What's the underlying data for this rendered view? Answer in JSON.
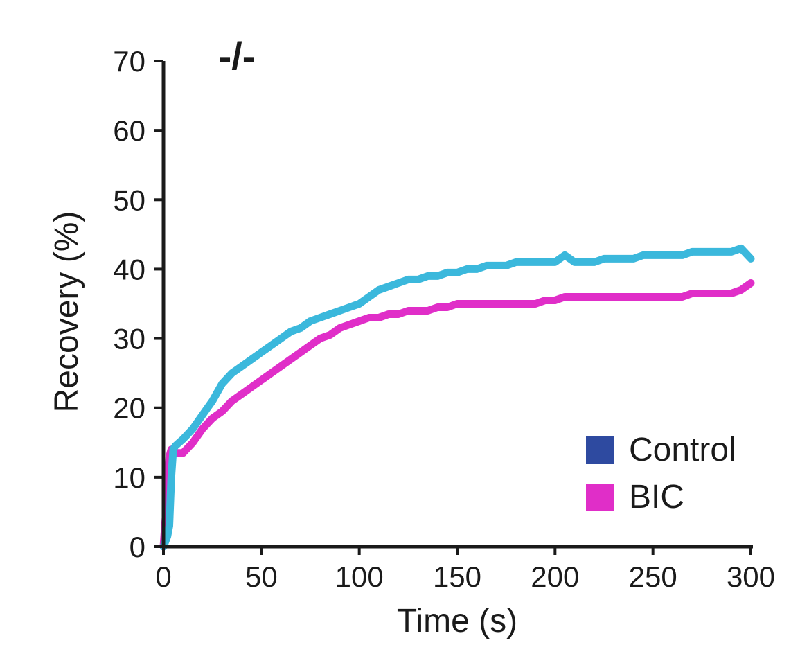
{
  "chart_data": {
    "type": "line",
    "title": "-/-",
    "xlabel": "Time (s)",
    "ylabel": "Recovery (%)",
    "xlim": [
      0,
      300
    ],
    "ylim": [
      0,
      70
    ],
    "x_ticks": [
      0,
      50,
      100,
      150,
      200,
      250,
      300
    ],
    "y_ticks": [
      0,
      10,
      20,
      30,
      40,
      50,
      60,
      70
    ],
    "grid": false,
    "legend_position": "bottom-right",
    "legend": [
      {
        "label": "Control",
        "color": "#2e4aa0"
      },
      {
        "label": "BIC",
        "color": "#e02ec8"
      }
    ],
    "series": [
      {
        "color": "#3bb8dc",
        "x": [
          0,
          2,
          3,
          4,
          5,
          6,
          8,
          10,
          15,
          20,
          25,
          30,
          35,
          40,
          45,
          50,
          55,
          60,
          65,
          70,
          75,
          80,
          85,
          90,
          95,
          100,
          105,
          110,
          115,
          120,
          125,
          130,
          135,
          140,
          145,
          150,
          155,
          160,
          165,
          170,
          175,
          180,
          185,
          190,
          195,
          200,
          205,
          210,
          215,
          220,
          225,
          230,
          235,
          240,
          245,
          250,
          255,
          260,
          265,
          270,
          275,
          280,
          285,
          290,
          295,
          300
        ],
        "values": [
          0,
          1.5,
          3,
          10,
          14,
          14.5,
          15,
          15.5,
          17,
          19,
          21,
          23.5,
          25,
          26,
          27,
          28,
          29,
          30,
          31,
          31.5,
          32.5,
          33,
          33.5,
          34,
          34.5,
          35,
          36,
          37,
          37.5,
          38,
          38.5,
          38.5,
          39,
          39,
          39.5,
          39.5,
          40,
          40,
          40.5,
          40.5,
          40.5,
          41,
          41,
          41,
          41,
          41,
          42,
          41,
          41,
          41,
          41.5,
          41.5,
          41.5,
          41.5,
          42,
          42,
          42,
          42,
          42,
          42.5,
          42.5,
          42.5,
          42.5,
          42.5,
          43,
          41.5
        ]
      },
      {
        "color": "#e02ec8",
        "x": [
          0,
          2,
          3,
          4,
          5,
          6,
          8,
          10,
          15,
          20,
          25,
          30,
          35,
          40,
          45,
          50,
          55,
          60,
          65,
          70,
          75,
          80,
          85,
          90,
          95,
          100,
          105,
          110,
          115,
          120,
          125,
          130,
          135,
          140,
          145,
          150,
          155,
          160,
          165,
          170,
          175,
          180,
          185,
          190,
          195,
          200,
          205,
          210,
          215,
          220,
          225,
          230,
          235,
          240,
          245,
          250,
          255,
          260,
          265,
          270,
          275,
          280,
          285,
          290,
          295,
          300
        ],
        "values": [
          0,
          8,
          13,
          14,
          14,
          13.5,
          13.5,
          13.5,
          15,
          17,
          18.5,
          19.5,
          21,
          22,
          23,
          24,
          25,
          26,
          27,
          28,
          29,
          30,
          30.5,
          31.5,
          32,
          32.5,
          33,
          33,
          33.5,
          33.5,
          34,
          34,
          34,
          34.5,
          34.5,
          35,
          35,
          35,
          35,
          35,
          35,
          35,
          35,
          35,
          35.5,
          35.5,
          36,
          36,
          36,
          36,
          36,
          36,
          36,
          36,
          36,
          36,
          36,
          36,
          36,
          36.5,
          36.5,
          36.5,
          36.5,
          36.5,
          37,
          38
        ]
      }
    ]
  }
}
